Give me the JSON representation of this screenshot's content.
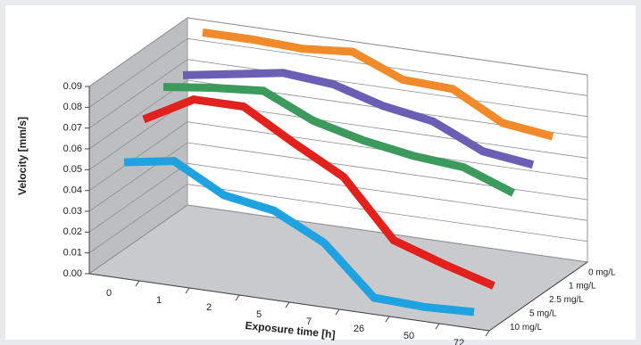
{
  "chart_data": {
    "type": "line3d",
    "y_label": "Velocity [mm/s]",
    "x_label": "Exposure time [h]",
    "categories": [
      "0",
      "1",
      "2",
      "5",
      "7",
      "26",
      "50",
      "72"
    ],
    "ylim": [
      0,
      0.09
    ],
    "yticks": [
      {
        "value": 0,
        "label": "0.00"
      },
      {
        "value": 0.01,
        "label": "0.01"
      },
      {
        "value": 0.02,
        "label": "0.02"
      },
      {
        "value": 0.03,
        "label": "0.03"
      },
      {
        "value": 0.04,
        "label": "0.04"
      },
      {
        "value": 0.05,
        "label": "0.05"
      },
      {
        "value": 0.06,
        "label": "0.06"
      },
      {
        "value": 0.07,
        "label": "0.07"
      },
      {
        "value": 0.08,
        "label": "0.08"
      },
      {
        "value": 0.09,
        "label": "0.09"
      }
    ],
    "grid": true,
    "series": [
      {
        "name": "0 mg/L",
        "color": "#f08a2a",
        "values": [
          0.088,
          0.088,
          0.087,
          0.089,
          0.079,
          0.078,
          0.065,
          0.062
        ]
      },
      {
        "name": "1 mg/L",
        "color": "#6b5fb5",
        "values": [
          0.074,
          0.078,
          0.082,
          0.08,
          0.073,
          0.069,
          0.058,
          0.055
        ]
      },
      {
        "name": "2.5 mg/L",
        "color": "#3c9a5c",
        "values": [
          0.075,
          0.078,
          0.08,
          0.069,
          0.063,
          0.059,
          0.057,
          0.048
        ]
      },
      {
        "name": "5 mg/L",
        "color": "#e2201c",
        "values": [
          0.066,
          0.079,
          0.079,
          0.065,
          0.052,
          0.025,
          0.017,
          0.01
        ]
      },
      {
        "name": "10 mg/L",
        "color": "#1fa2e0",
        "values": [
          0.052,
          0.056,
          0.043,
          0.039,
          0.027,
          0.004,
          0.003,
          0.004
        ]
      }
    ]
  }
}
